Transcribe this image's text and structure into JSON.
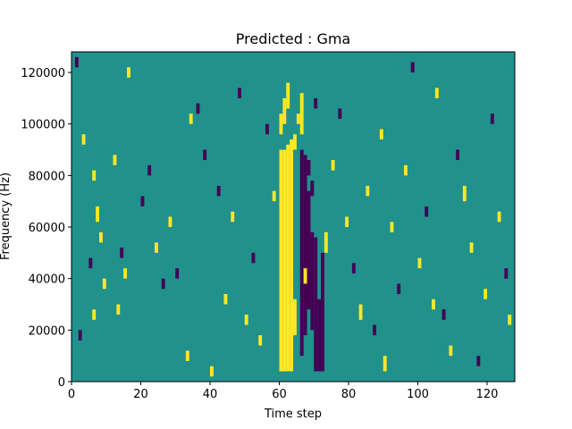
{
  "chart_data": {
    "type": "heatmap",
    "title": "Predicted : Gma",
    "xlabel": "Time step",
    "ylabel": "Frequency (Hz)",
    "xlim": [
      0,
      128
    ],
    "ylim": [
      0,
      128000
    ],
    "xticks": [
      0,
      20,
      40,
      60,
      80,
      100,
      120
    ],
    "yticks": [
      0,
      20000,
      40000,
      60000,
      80000,
      100000,
      120000
    ],
    "grid": false,
    "colors": {
      "low": "#440154",
      "mid": "#21918c",
      "high": "#fde725"
    },
    "levels": {
      "low": -1,
      "background": 0,
      "high": 1
    },
    "band_height_hz": 2000,
    "cells": [
      {
        "t": 60,
        "f0": 4000,
        "f1": 90000,
        "v": 1
      },
      {
        "t": 61,
        "f0": 4000,
        "f1": 90000,
        "v": 1
      },
      {
        "t": 62,
        "f0": 4000,
        "f1": 92000,
        "v": 1
      },
      {
        "t": 63,
        "f0": 4000,
        "f1": 94000,
        "v": 1
      },
      {
        "t": 64,
        "f0": 18000,
        "f1": 32000,
        "v": 1
      },
      {
        "t": 60,
        "f0": 96000,
        "f1": 104000,
        "v": 1
      },
      {
        "t": 61,
        "f0": 100000,
        "f1": 110000,
        "v": 1
      },
      {
        "t": 62,
        "f0": 106000,
        "f1": 116000,
        "v": 1
      },
      {
        "t": 64,
        "f0": 90000,
        "f1": 96000,
        "v": 1
      },
      {
        "t": 65,
        "f0": 100000,
        "f1": 104000,
        "v": 1
      },
      {
        "t": 66,
        "f0": 96000,
        "f1": 112000,
        "v": 1
      },
      {
        "t": 66,
        "f0": 10000,
        "f1": 90000,
        "v": -1
      },
      {
        "t": 67,
        "f0": 18000,
        "f1": 88000,
        "v": -1
      },
      {
        "t": 68,
        "f0": 28000,
        "f1": 74000,
        "v": -1
      },
      {
        "t": 69,
        "f0": 20000,
        "f1": 58000,
        "v": -1
      },
      {
        "t": 70,
        "f0": 4000,
        "f1": 56000,
        "v": -1
      },
      {
        "t": 71,
        "f0": 4000,
        "f1": 32000,
        "v": -1
      },
      {
        "t": 72,
        "f0": 4000,
        "f1": 50000,
        "v": -1
      },
      {
        "t": 68,
        "f0": 80000,
        "f1": 86000,
        "v": -1
      },
      {
        "t": 69,
        "f0": 72000,
        "f1": 78000,
        "v": -1
      },
      {
        "t": 70,
        "f0": 106000,
        "f1": 110000,
        "v": -1
      },
      {
        "t": 67,
        "f0": 38000,
        "f1": 44000,
        "v": 1
      },
      {
        "t": 73,
        "f0": 50000,
        "f1": 58000,
        "v": 1
      },
      {
        "t": 83,
        "f0": 24000,
        "f1": 30000,
        "v": 1
      },
      {
        "t": 90,
        "f0": 4000,
        "f1": 10000,
        "v": 1
      },
      {
        "t": 104,
        "f0": 28000,
        "f1": 32000,
        "v": 1
      },
      {
        "t": 1,
        "f0": 122000,
        "f1": 126000,
        "v": -1
      },
      {
        "t": 3,
        "f0": 92000,
        "f1": 96000,
        "v": 1
      },
      {
        "t": 6,
        "f0": 78000,
        "f1": 82000,
        "v": 1
      },
      {
        "t": 7,
        "f0": 62000,
        "f1": 68000,
        "v": 1
      },
      {
        "t": 8,
        "f0": 54000,
        "f1": 58000,
        "v": 1
      },
      {
        "t": 5,
        "f0": 44000,
        "f1": 48000,
        "v": -1
      },
      {
        "t": 6,
        "f0": 24000,
        "f1": 28000,
        "v": 1
      },
      {
        "t": 2,
        "f0": 16000,
        "f1": 20000,
        "v": -1
      },
      {
        "t": 9,
        "f0": 36000,
        "f1": 40000,
        "v": 1
      },
      {
        "t": 14,
        "f0": 48000,
        "f1": 52000,
        "v": -1
      },
      {
        "t": 15,
        "f0": 40000,
        "f1": 44000,
        "v": 1
      },
      {
        "t": 13,
        "f0": 26000,
        "f1": 30000,
        "v": 1
      },
      {
        "t": 12,
        "f0": 84000,
        "f1": 88000,
        "v": 1
      },
      {
        "t": 16,
        "f0": 118000,
        "f1": 122000,
        "v": 1
      },
      {
        "t": 20,
        "f0": 68000,
        "f1": 72000,
        "v": -1
      },
      {
        "t": 22,
        "f0": 80000,
        "f1": 84000,
        "v": -1
      },
      {
        "t": 24,
        "f0": 50000,
        "f1": 54000,
        "v": 1
      },
      {
        "t": 26,
        "f0": 36000,
        "f1": 40000,
        "v": -1
      },
      {
        "t": 28,
        "f0": 60000,
        "f1": 64000,
        "v": 1
      },
      {
        "t": 30,
        "f0": 40000,
        "f1": 44000,
        "v": -1
      },
      {
        "t": 33,
        "f0": 8000,
        "f1": 12000,
        "v": 1
      },
      {
        "t": 34,
        "f0": 100000,
        "f1": 104000,
        "v": 1
      },
      {
        "t": 36,
        "f0": 104000,
        "f1": 108000,
        "v": -1
      },
      {
        "t": 38,
        "f0": 86000,
        "f1": 90000,
        "v": -1
      },
      {
        "t": 40,
        "f0": 2000,
        "f1": 6000,
        "v": 1
      },
      {
        "t": 42,
        "f0": 72000,
        "f1": 76000,
        "v": -1
      },
      {
        "t": 44,
        "f0": 30000,
        "f1": 34000,
        "v": 1
      },
      {
        "t": 46,
        "f0": 62000,
        "f1": 66000,
        "v": 1
      },
      {
        "t": 48,
        "f0": 110000,
        "f1": 114000,
        "v": -1
      },
      {
        "t": 50,
        "f0": 22000,
        "f1": 26000,
        "v": 1
      },
      {
        "t": 52,
        "f0": 46000,
        "f1": 50000,
        "v": -1
      },
      {
        "t": 54,
        "f0": 14000,
        "f1": 18000,
        "v": 1
      },
      {
        "t": 56,
        "f0": 96000,
        "f1": 100000,
        "v": -1
      },
      {
        "t": 58,
        "f0": 70000,
        "f1": 74000,
        "v": 1
      },
      {
        "t": 75,
        "f0": 82000,
        "f1": 86000,
        "v": 1
      },
      {
        "t": 77,
        "f0": 102000,
        "f1": 106000,
        "v": -1
      },
      {
        "t": 79,
        "f0": 60000,
        "f1": 64000,
        "v": 1
      },
      {
        "t": 81,
        "f0": 42000,
        "f1": 46000,
        "v": -1
      },
      {
        "t": 85,
        "f0": 72000,
        "f1": 76000,
        "v": 1
      },
      {
        "t": 87,
        "f0": 18000,
        "f1": 22000,
        "v": -1
      },
      {
        "t": 89,
        "f0": 94000,
        "f1": 98000,
        "v": 1
      },
      {
        "t": 92,
        "f0": 58000,
        "f1": 62000,
        "v": 1
      },
      {
        "t": 94,
        "f0": 34000,
        "f1": 38000,
        "v": -1
      },
      {
        "t": 96,
        "f0": 80000,
        "f1": 84000,
        "v": 1
      },
      {
        "t": 98,
        "f0": 120000,
        "f1": 124000,
        "v": -1
      },
      {
        "t": 100,
        "f0": 44000,
        "f1": 48000,
        "v": 1
      },
      {
        "t": 102,
        "f0": 64000,
        "f1": 68000,
        "v": -1
      },
      {
        "t": 105,
        "f0": 110000,
        "f1": 114000,
        "v": 1
      },
      {
        "t": 107,
        "f0": 24000,
        "f1": 28000,
        "v": -1
      },
      {
        "t": 109,
        "f0": 10000,
        "f1": 14000,
        "v": 1
      },
      {
        "t": 111,
        "f0": 86000,
        "f1": 90000,
        "v": -1
      },
      {
        "t": 113,
        "f0": 70000,
        "f1": 76000,
        "v": 1
      },
      {
        "t": 115,
        "f0": 50000,
        "f1": 54000,
        "v": 1
      },
      {
        "t": 117,
        "f0": 6000,
        "f1": 10000,
        "v": -1
      },
      {
        "t": 119,
        "f0": 32000,
        "f1": 36000,
        "v": 1
      },
      {
        "t": 121,
        "f0": 100000,
        "f1": 104000,
        "v": -1
      },
      {
        "t": 123,
        "f0": 62000,
        "f1": 66000,
        "v": 1
      },
      {
        "t": 125,
        "f0": 40000,
        "f1": 44000,
        "v": -1
      },
      {
        "t": 126,
        "f0": 22000,
        "f1": 26000,
        "v": 1
      }
    ]
  }
}
